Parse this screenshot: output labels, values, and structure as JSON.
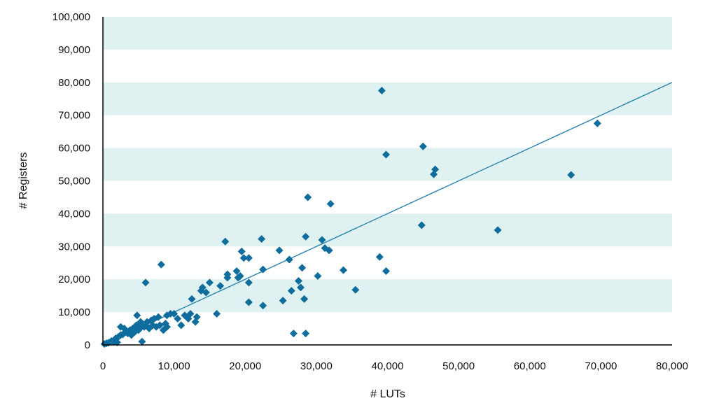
{
  "chart_data": {
    "type": "scatter",
    "xlabel": "# LUTs",
    "ylabel": "# Registers",
    "xlim": [
      0,
      80000
    ],
    "ylim": [
      0,
      100000
    ],
    "x_ticks": [
      "0",
      "10,000",
      "20,000",
      "30,000",
      "40,000",
      "50,000",
      "60,000",
      "70,000",
      "80,000"
    ],
    "y_ticks": [
      "0",
      "10,000",
      "20,000",
      "30,000",
      "40,000",
      "50,000",
      "60,000",
      "70,000",
      "80,000",
      "90,000",
      "100,000"
    ],
    "band_color": "#e0f1f2",
    "point_color": "#0e6d9c",
    "trend_color": "#2a86b4",
    "trendline": {
      "x": [
        0,
        80000
      ],
      "y": [
        0,
        80000
      ]
    },
    "series": [
      {
        "marker": "diamond",
        "points": [
          [
            200,
            300
          ],
          [
            500,
            500
          ],
          [
            800,
            700
          ],
          [
            1200,
            1200
          ],
          [
            1500,
            1000
          ],
          [
            1800,
            2000
          ],
          [
            2000,
            800
          ],
          [
            2200,
            2500
          ],
          [
            2500,
            3000
          ],
          [
            2500,
            5500
          ],
          [
            2800,
            3200
          ],
          [
            3000,
            5000
          ],
          [
            3200,
            4000
          ],
          [
            3500,
            3500
          ],
          [
            3800,
            4500
          ],
          [
            4000,
            3000
          ],
          [
            4200,
            5000
          ],
          [
            4500,
            4000
          ],
          [
            4700,
            6000
          ],
          [
            4800,
            9000
          ],
          [
            5000,
            4500
          ],
          [
            5200,
            5000
          ],
          [
            5300,
            7000
          ],
          [
            5500,
            6000
          ],
          [
            5500,
            1000
          ],
          [
            5800,
            5500
          ],
          [
            6000,
            6000
          ],
          [
            6000,
            19000
          ],
          [
            6200,
            7000
          ],
          [
            6500,
            5000
          ],
          [
            6800,
            7500
          ],
          [
            7000,
            6000
          ],
          [
            7200,
            8000
          ],
          [
            7500,
            5500
          ],
          [
            7800,
            8500
          ],
          [
            8000,
            6000
          ],
          [
            8200,
            24500
          ],
          [
            8500,
            4500
          ],
          [
            8800,
            6500
          ],
          [
            9000,
            9000
          ],
          [
            9000,
            5500
          ],
          [
            9500,
            9500
          ],
          [
            10000,
            9500
          ],
          [
            10500,
            8000
          ],
          [
            11000,
            6000
          ],
          [
            11500,
            9000
          ],
          [
            12000,
            8000
          ],
          [
            12300,
            9500
          ],
          [
            12500,
            14000
          ],
          [
            13000,
            7000
          ],
          [
            13200,
            8500
          ],
          [
            13800,
            16500
          ],
          [
            14000,
            17500
          ],
          [
            14500,
            16000
          ],
          [
            15000,
            19000
          ],
          [
            16000,
            9500
          ],
          [
            16500,
            18000
          ],
          [
            17200,
            31500
          ],
          [
            17500,
            20500
          ],
          [
            17500,
            21500
          ],
          [
            18800,
            22500
          ],
          [
            19000,
            20500
          ],
          [
            19300,
            21000
          ],
          [
            19500,
            28500
          ],
          [
            19800,
            26500
          ],
          [
            20500,
            26500
          ],
          [
            20500,
            19000
          ],
          [
            20500,
            13000
          ],
          [
            22300,
            32300
          ],
          [
            22500,
            12000
          ],
          [
            22500,
            23000
          ],
          [
            24800,
            28800
          ],
          [
            25300,
            13500
          ],
          [
            26200,
            26000
          ],
          [
            26500,
            16500
          ],
          [
            26800,
            3500
          ],
          [
            27500,
            19500
          ],
          [
            27800,
            17500
          ],
          [
            28000,
            23500
          ],
          [
            28300,
            14000
          ],
          [
            28500,
            33000
          ],
          [
            28500,
            3500
          ],
          [
            28800,
            45000
          ],
          [
            30200,
            21000
          ],
          [
            30800,
            32000
          ],
          [
            31200,
            29500
          ],
          [
            31800,
            28800
          ],
          [
            32000,
            43000
          ],
          [
            33800,
            22800
          ],
          [
            35500,
            16800
          ],
          [
            38900,
            26800
          ],
          [
            39200,
            77500
          ],
          [
            39800,
            22500
          ],
          [
            39800,
            58000
          ],
          [
            44800,
            36500
          ],
          [
            45000,
            60500
          ],
          [
            46500,
            52000
          ],
          [
            46700,
            53500
          ],
          [
            55500,
            35000
          ],
          [
            65800,
            51800
          ],
          [
            69500,
            67500
          ]
        ]
      }
    ]
  }
}
